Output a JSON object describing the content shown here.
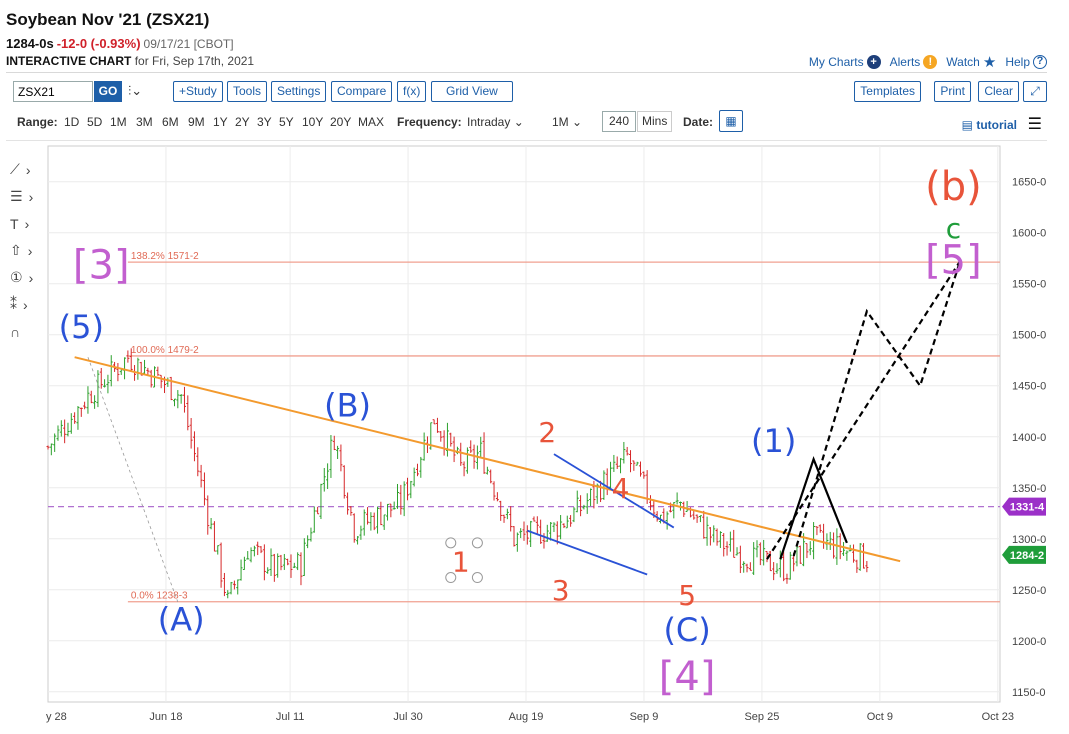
{
  "header": {
    "title": "Soybean Nov '21 (ZSX21)",
    "last": "1284-0s",
    "change": "-12-0 (-0.93%)",
    "date_exchange": "09/17/21 [CBOT]",
    "sub_bold": "INTERACTIVE CHART",
    "sub_rest": "for Fri, Sep 17th, 2021"
  },
  "top_links": {
    "my_charts": "My Charts",
    "alerts": "Alerts",
    "watch": "Watch",
    "help": "Help"
  },
  "toolbar": {
    "symbol": "ZSX21",
    "go": "GO",
    "study": "+Study",
    "tools": "Tools",
    "settings": "Settings",
    "compare": "Compare",
    "fx": "f(x)",
    "grid_view": "Grid View",
    "templates": "Templates",
    "print": "Print",
    "clear": "Clear"
  },
  "range_bar": {
    "range_label": "Range:",
    "ranges": [
      "1D",
      "5D",
      "1M",
      "3M",
      "6M",
      "9M",
      "1Y",
      "2Y",
      "3Y",
      "5Y",
      "10Y",
      "20Y",
      "MAX"
    ],
    "frequency_label": "Frequency:",
    "frequency": "Intraday",
    "period": "1M",
    "minutes": "240",
    "mins_label": "Mins",
    "date_label": "Date:",
    "tutorial": "tutorial"
  },
  "chart_data": {
    "type": "line",
    "subtype": "ohlc-bars-with-elliott-wave-annotations",
    "symbol": "ZSX21",
    "x_labels": [
      "y 28",
      "Jun 18",
      "Jul 11",
      "Jul 30",
      "Aug 19",
      "Sep 9",
      "Sep 25",
      "Oct 9",
      "Oct 23"
    ],
    "y_axis_labels": [
      "1650-0",
      "1600-0",
      "1550-0",
      "1500-0",
      "1450-0",
      "1400-0",
      "1350-0",
      "1300-0",
      "1250-0",
      "1200-0",
      "1150-0"
    ],
    "ylim": [
      1140,
      1685
    ],
    "y_ticks": [
      1650,
      1600,
      1550,
      1500,
      1450,
      1400,
      1350,
      1300,
      1250,
      1200,
      1150
    ],
    "grid": true,
    "price_path_x": [
      0,
      6,
      12,
      16,
      20,
      27,
      30,
      34,
      38,
      43,
      46,
      53,
      58,
      62,
      65,
      70,
      76,
      80,
      87,
      92,
      95,
      100,
      104,
      111,
      115,
      119,
      123
    ],
    "price_path_y": [
      1390,
      1440,
      1478,
      1460,
      1440,
      1238,
      1290,
      1270,
      1275,
      1400,
      1310,
      1335,
      1418,
      1370,
      1385,
      1300,
      1310,
      1330,
      1380,
      1320,
      1335,
      1300,
      1285,
      1270,
      1300,
      1290,
      1280
    ],
    "fib_levels": [
      {
        "label": "138.2% 1571-2",
        "value": 1571.2
      },
      {
        "label": "100.0% 1479-2",
        "value": 1479.2
      },
      {
        "label": "0.0% 1238-3",
        "value": 1238.3
      }
    ],
    "price_tags": [
      {
        "label": "1331-4",
        "value": 1331.5,
        "color": "#9b30c8"
      },
      {
        "label": "1284-2",
        "value": 1284.25,
        "color": "#1f9d3a"
      }
    ],
    "trendline": {
      "x": [
        4,
        128
      ],
      "y": [
        1478,
        1278
      ],
      "color": "#f39a2e"
    },
    "channel_lines": [
      {
        "x": [
          76,
          94
        ],
        "y": [
          1383,
          1311
        ]
      },
      {
        "x": [
          72,
          90
        ],
        "y": [
          1308,
          1265
        ]
      }
    ],
    "projection_solid": {
      "x": [
        110,
        115,
        120
      ],
      "y": [
        1280,
        1378,
        1296
      ]
    },
    "projection_dashed_1": {
      "x": [
        112,
        123,
        131,
        137
      ],
      "y": [
        1283,
        1523,
        1450,
        1572
      ]
    },
    "projection_dashed_2": {
      "x": [
        108,
        137
      ],
      "y": [
        1280,
        1572
      ]
    },
    "wave_labels": [
      {
        "text": "[3]",
        "x": 8,
        "y": 1555,
        "color": "#c25fcf"
      },
      {
        "text": "(5)",
        "x": 5,
        "y": 1497,
        "color": "#2a52d6"
      },
      {
        "text": "(A)",
        "x": 20,
        "y": 1210,
        "color": "#2a52d6"
      },
      {
        "text": "(B)",
        "x": 45,
        "y": 1420,
        "color": "#2a52d6"
      },
      {
        "text": "1",
        "x": 62,
        "y": 1268,
        "color": "#e8543a"
      },
      {
        "text": "2",
        "x": 75,
        "y": 1395,
        "color": "#e8543a"
      },
      {
        "text": "3",
        "x": 77,
        "y": 1240,
        "color": "#e8543a"
      },
      {
        "text": "4",
        "x": 86,
        "y": 1340,
        "color": "#e8543a"
      },
      {
        "text": "5",
        "x": 96,
        "y": 1235,
        "color": "#e8543a"
      },
      {
        "text": "(C)",
        "x": 96,
        "y": 1200,
        "color": "#2a52d6"
      },
      {
        "text": "[4]",
        "x": 96,
        "y": 1152,
        "color": "#c25fcf"
      },
      {
        "text": "(1)",
        "x": 109,
        "y": 1385,
        "color": "#2a52d6"
      },
      {
        "text": "(b)",
        "x": 136,
        "y": 1632,
        "color": "#e8543a"
      },
      {
        "text": "c",
        "x": 136,
        "y": 1595,
        "color": "#1f9d3a"
      },
      {
        "text": "[5]",
        "x": 136,
        "y": 1560,
        "color": "#c25fcf"
      }
    ]
  },
  "colors": {
    "brand_blue": "#1e5fa8",
    "down_red": "#d0212a",
    "fib_line": "#f0a090",
    "dashed_level": "#b070d0",
    "bar_green": "#2ca02c",
    "bar_red": "#d62728"
  }
}
